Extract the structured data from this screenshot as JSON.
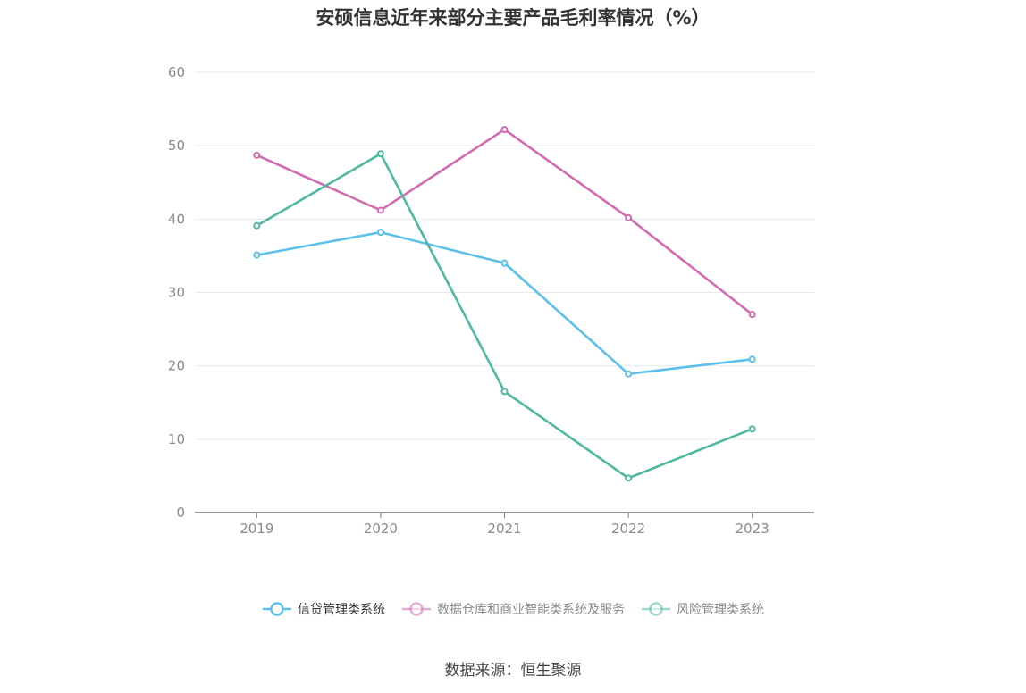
{
  "title": "安硕信息近年来部分主要产品毛利率情况（%）",
  "source": "数据来源：恒生聚源",
  "chart_data": {
    "type": "line",
    "title": "安硕信息近年来部分主要产品毛利率情况（%）",
    "categories": [
      "2019",
      "2020",
      "2021",
      "2022",
      "2023"
    ],
    "ylim": [
      0,
      60
    ],
    "yticks": [
      0,
      10,
      20,
      30,
      40,
      50,
      60
    ],
    "grid": true,
    "legend_position": "bottom",
    "series": [
      {
        "name": "信贷管理类系统",
        "color": "#5bc0eb",
        "values": [
          35.1,
          38.2,
          34.0,
          18.9,
          20.9
        ]
      },
      {
        "name": "数据仓库和商业智能类系统及服务",
        "color": "#d46ab0",
        "values": [
          48.7,
          41.2,
          52.2,
          40.2,
          27.0
        ]
      },
      {
        "name": "风险管理类系统",
        "color": "#4fb8a0",
        "values": [
          39.1,
          48.9,
          16.5,
          4.7,
          11.4
        ]
      }
    ]
  }
}
